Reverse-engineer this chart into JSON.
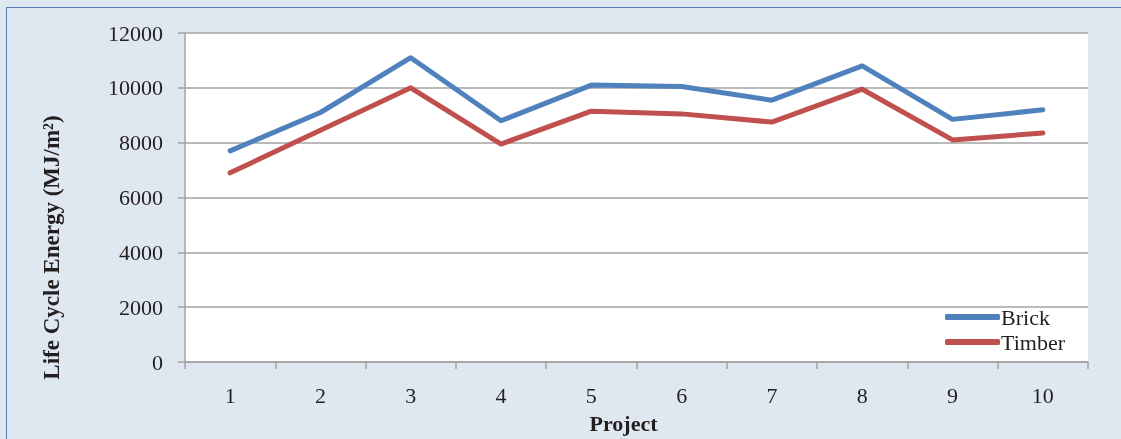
{
  "chart_data": {
    "type": "line",
    "xlabel": "Project",
    "ylabel": "Life Cycle Energy (MJ/m²)",
    "categories": [
      "1",
      "2",
      "3",
      "4",
      "5",
      "6",
      "7",
      "8",
      "9",
      "10"
    ],
    "series": [
      {
        "name": "Brick",
        "color": "#4f81bd",
        "values": [
          7700,
          9100,
          11100,
          8800,
          10100,
          10050,
          9550,
          10800,
          8850,
          9200
        ]
      },
      {
        "name": "Timber",
        "color": "#c0504d",
        "values": [
          6900,
          8450,
          10000,
          7950,
          9150,
          9050,
          8750,
          9950,
          8100,
          8350
        ]
      }
    ],
    "ylim": [
      0,
      12000
    ],
    "yticks": [
      0,
      2000,
      4000,
      6000,
      8000,
      10000,
      12000
    ],
    "grid": "y",
    "legend": "bottom right",
    "marker": "none",
    "line_style": "solid"
  }
}
